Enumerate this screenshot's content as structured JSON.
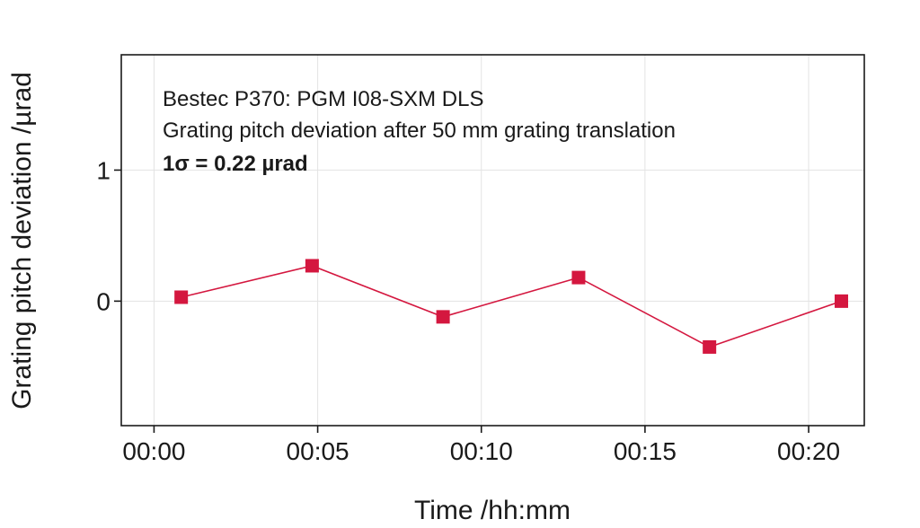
{
  "chart_data": {
    "type": "line",
    "xlabel": "Time /hh:mm",
    "ylabel": "Grating pitch deviation /µrad",
    "x_ticks": [
      "00:00",
      "00:05",
      "00:10",
      "00:15",
      "00:20"
    ],
    "x_tick_minutes": [
      0,
      5,
      10,
      15,
      20
    ],
    "xlim": [
      -1,
      21.7
    ],
    "y_ticks": [
      "0",
      "1"
    ],
    "y_tick_values": [
      0,
      1
    ],
    "ylim": [
      -0.95,
      1.88
    ],
    "grid": true,
    "annotations": [
      "Bestec P370: PGM I08-SXM DLS",
      "Grating pitch deviation after 50 mm grating translation",
      "1σ = 0.22 µrad"
    ],
    "series": [
      {
        "color": "#d4173f",
        "marker": "square",
        "x": [
          "00:00:50",
          "00:04:50",
          "00:08:50",
          "00:12:58",
          "00:16:58",
          "00:21:00"
        ],
        "x_minutes": [
          0.83,
          4.83,
          8.83,
          12.97,
          16.97,
          21.0
        ],
        "y": [
          0.03,
          0.27,
          -0.12,
          0.18,
          -0.35,
          0.0
        ]
      }
    ]
  }
}
